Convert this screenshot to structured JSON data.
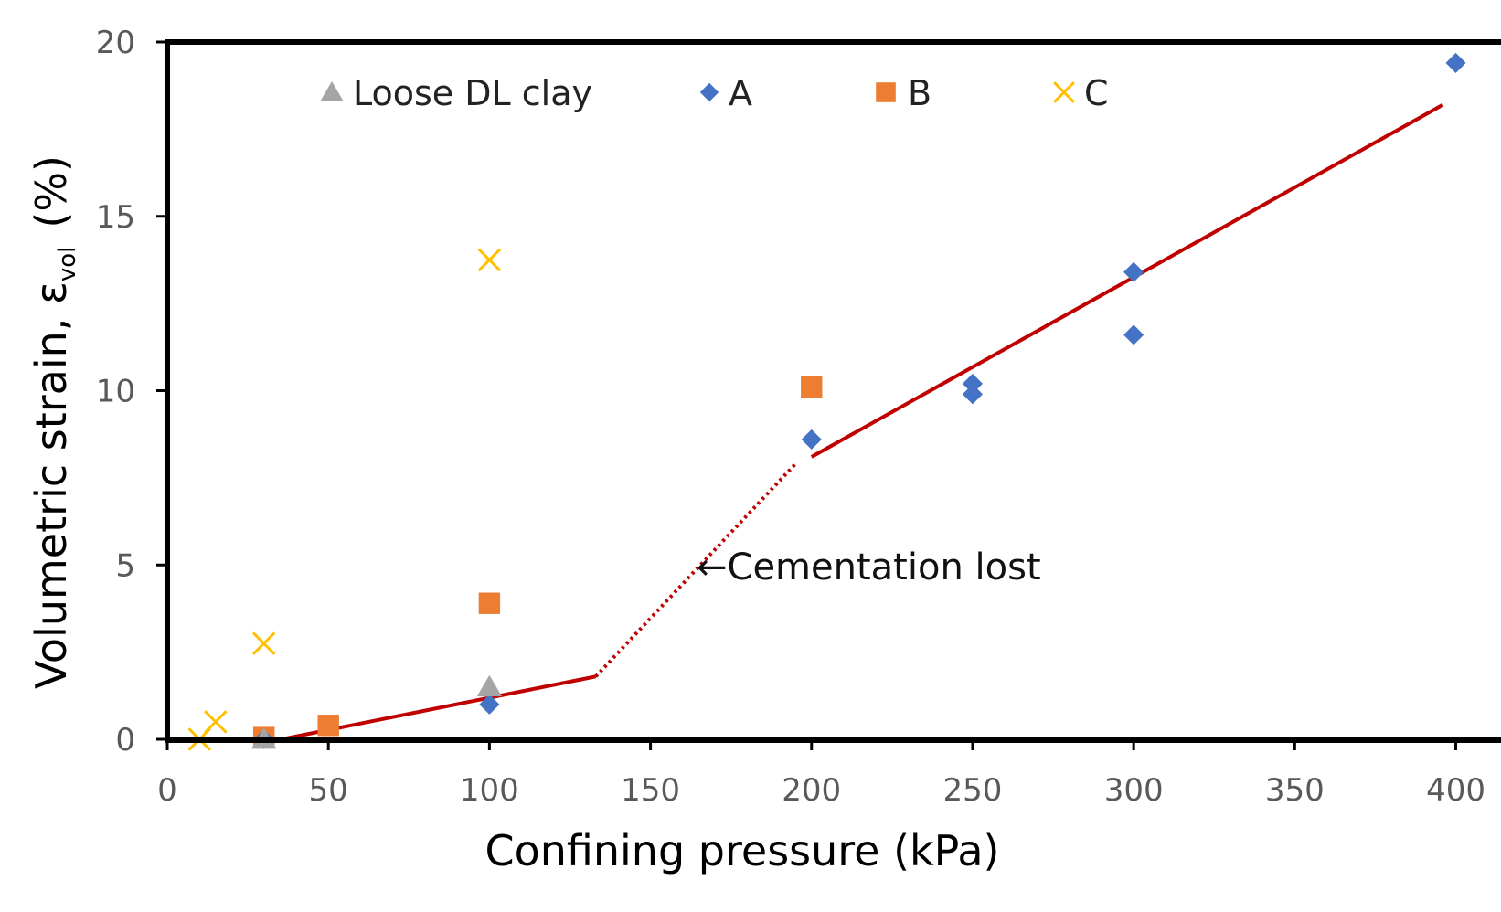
{
  "chart_data": {
    "type": "scatter",
    "xlabel": "Confining pressure (kPa)",
    "ylabel": {
      "main": "Volumetric  strain, ε",
      "sub": "vol",
      "unit": "(%)"
    },
    "xlim": [
      0,
      420
    ],
    "ylim": [
      0,
      20
    ],
    "xticks": [
      "0",
      "50",
      "100",
      "150",
      "200",
      "250",
      "300",
      "350",
      "400"
    ],
    "yticks": [
      "0",
      "5",
      "10",
      "15",
      "20"
    ],
    "grid": false,
    "legend_position": "top",
    "series": [
      {
        "name": "Loose DL clay",
        "marker": "triangle",
        "color": "#a5a5a5",
        "x": [
          30,
          100
        ],
        "y": [
          0.0,
          1.5
        ]
      },
      {
        "name": "A",
        "marker": "diamond",
        "color": "#4472c4",
        "x": [
          30,
          100,
          200,
          250,
          250,
          300,
          300,
          400
        ],
        "y": [
          0.0,
          1.0,
          8.6,
          10.2,
          9.9,
          13.4,
          11.6,
          19.4
        ]
      },
      {
        "name": "B",
        "marker": "square",
        "color": "#ed7d31",
        "x": [
          30,
          50,
          100,
          200
        ],
        "y": [
          0.05,
          0.4,
          3.9,
          10.1
        ]
      },
      {
        "name": "C",
        "marker": "x",
        "color": "#ffc000",
        "x": [
          10,
          15,
          30,
          100
        ],
        "y": [
          0.0,
          0.5,
          2.75,
          13.75
        ]
      }
    ],
    "trend_lines": [
      {
        "style": "solid",
        "color": "#c00000",
        "x": [
          30,
          133
        ],
        "y": [
          -0.1,
          1.8
        ]
      },
      {
        "style": "dotted",
        "color": "#c00000",
        "x": [
          133,
          195
        ],
        "y": [
          1.8,
          7.9
        ]
      },
      {
        "style": "solid",
        "color": "#c00000",
        "x": [
          200,
          396
        ],
        "y": [
          8.1,
          18.2
        ]
      }
    ],
    "annotations": [
      {
        "text": "←Cementation lost",
        "x": 175,
        "y": 5
      }
    ]
  }
}
